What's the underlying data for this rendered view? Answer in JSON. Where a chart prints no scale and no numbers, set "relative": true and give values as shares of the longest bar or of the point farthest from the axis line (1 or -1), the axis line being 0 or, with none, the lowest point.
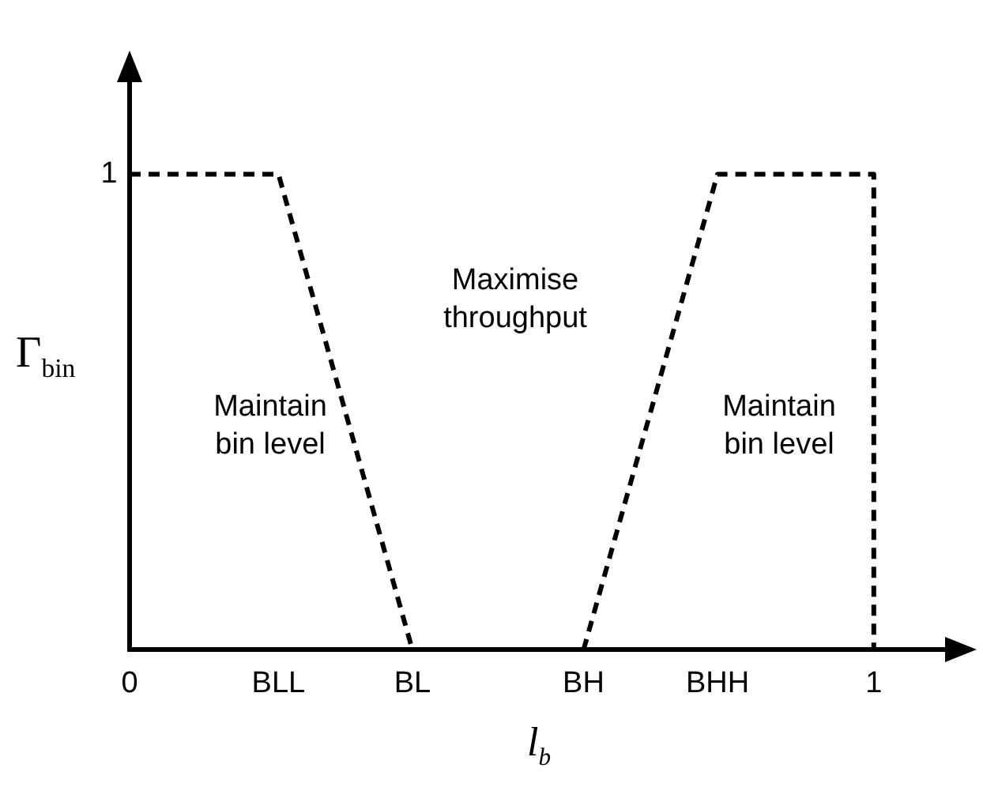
{
  "chart_data": {
    "type": "line",
    "xlabel": "l$_{b}$",
    "ylabel": "Γ$_{bin}$",
    "xlim": [
      0,
      1.1
    ],
    "relative": true,
    "xticks": [
      0,
      {
        "value": 0.2,
        "label": "BLL"
      },
      {
        "value": 0.38,
        "label": "BL"
      },
      {
        "value": 0.61,
        "label": "BH"
      },
      {
        "value": 0.79,
        "label": "BHH"
      },
      1
    ],
    "series": [
      {
        "color": "#000000",
        "x": [
          0,
          0.2,
          0.38
        ],
        "values": [
          1,
          1,
          0
        ]
      },
      {
        "color": "#000000",
        "x": [
          0.61,
          0.79,
          1,
          1
        ],
        "values": [
          0,
          1,
          1,
          0
        ]
      }
    ],
    "annotations": [
      "1",
      "Maintain\nbin level",
      "Maximise\nthroughput",
      "Maintain\nbin level"
    ],
    "line_style": "dashed",
    "marker": "none",
    "grid": false,
    "legend": false
  }
}
